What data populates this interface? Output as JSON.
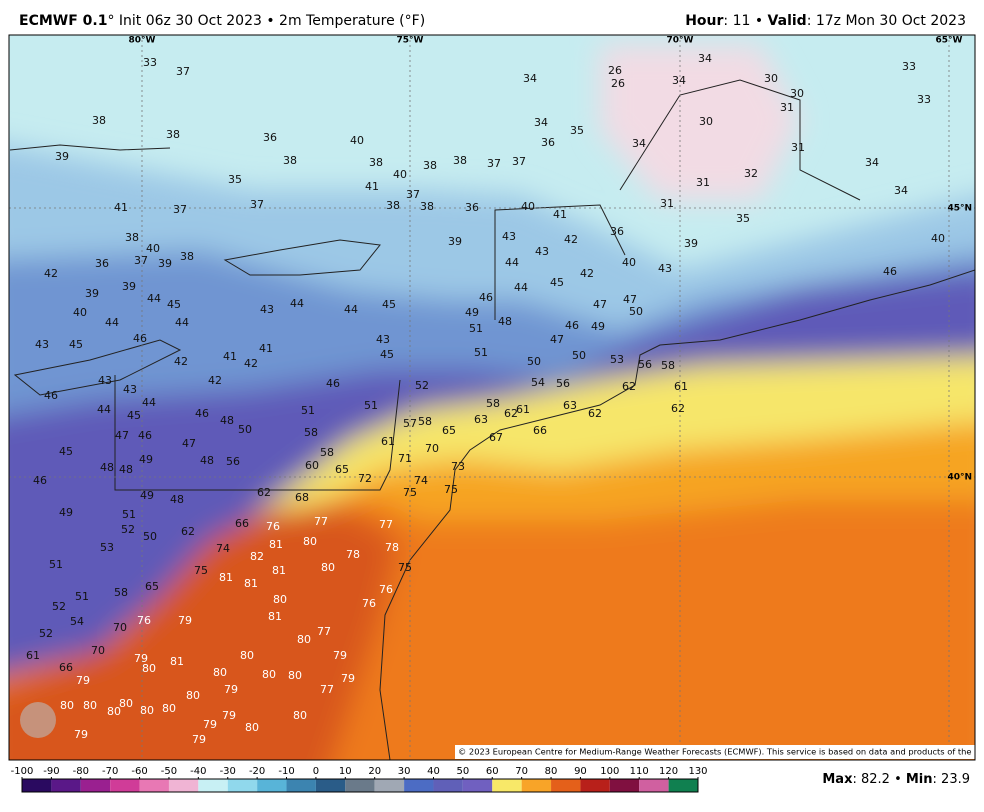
{
  "header": {
    "title_bold": "ECMWF 0.1",
    "title_rest": "° Init 06z 30 Oct 2023 • 2m Temperature (°F)",
    "hour_label": "Hour",
    "hour": ": 11 • ",
    "valid_label": "Valid",
    "valid": ": 17z Mon 30 Oct 2023"
  },
  "map": {
    "lon_labels": [
      "80°W",
      "75°W",
      "70°W",
      "65°W"
    ],
    "lat_labels": [
      "45°N",
      "40°N"
    ],
    "copyright": "© 2023 European Centre for Medium-Range Weather Forecasts (ECMWF). This service is based on data and products of the ECMWF.",
    "temperatures": [
      33,
      37,
      38,
      38,
      36,
      40,
      38,
      38,
      40,
      38,
      38,
      37,
      37,
      36,
      35,
      34,
      34,
      26,
      26,
      34,
      34,
      33,
      33,
      30,
      30,
      31,
      30,
      34,
      31,
      32,
      31,
      34,
      34,
      31,
      35,
      39,
      40,
      46,
      39,
      35,
      37,
      41,
      37,
      38,
      38,
      36,
      40,
      41,
      36,
      39,
      43,
      43,
      42,
      40,
      43,
      44,
      44,
      45,
      42,
      47,
      47,
      50,
      46,
      49,
      51,
      48,
      51,
      47,
      46,
      49,
      50,
      50,
      53,
      56,
      58,
      52,
      54,
      56,
      62,
      61,
      62,
      58,
      61,
      62,
      63,
      62,
      67,
      66,
      63,
      65,
      58,
      57,
      61,
      70,
      71,
      73,
      74,
      75,
      75,
      72,
      65,
      60,
      58,
      58,
      51,
      51,
      46,
      45,
      43,
      44,
      44,
      43,
      45,
      41,
      42,
      41,
      42,
      42,
      46,
      44,
      45,
      44,
      44,
      40,
      39,
      39,
      42,
      36,
      37,
      39,
      38,
      40,
      41,
      37,
      38,
      43,
      45,
      43,
      43,
      46,
      44,
      44,
      45,
      46,
      48,
      50,
      47,
      46,
      47,
      45,
      49,
      48,
      56,
      48,
      48,
      46,
      49,
      68,
      62,
      66,
      76,
      77,
      80,
      81,
      82,
      74,
      78,
      80,
      81,
      75,
      81,
      81,
      80,
      81,
      77,
      78,
      75,
      76,
      76,
      77,
      80,
      79,
      76,
      70,
      65,
      58,
      54,
      52,
      51,
      52,
      51,
      53,
      52,
      50,
      62,
      48,
      49,
      51,
      80,
      79,
      77,
      79,
      81,
      79,
      80,
      70,
      66,
      61,
      79,
      80,
      80,
      80,
      80,
      79,
      80,
      80,
      80,
      80,
      80,
      80,
      79,
      79,
      80,
      80,
      79,
      79
    ]
  },
  "colorbar": {
    "ticks": [
      -100,
      -90,
      -80,
      -70,
      -60,
      -50,
      -40,
      -30,
      -20,
      -10,
      0,
      10,
      20,
      30,
      40,
      50,
      60,
      70,
      80,
      90,
      100,
      110,
      120,
      130
    ],
    "colors": [
      "#2a0a60",
      "#5a1888",
      "#9a2090",
      "#d03c98",
      "#e878b4",
      "#f0b4d4",
      "#c8f0f4",
      "#90d8ec",
      "#58b4d8",
      "#3c84b0",
      "#2a5c88",
      "#6a7a8a",
      "#a0a8b4",
      "#4c6cc4",
      "#6060b8",
      "#7060c0",
      "#f8e868",
      "#f8a428",
      "#e4601a",
      "#b8201a",
      "#801040",
      "#d060a0",
      "#108050"
    ]
  },
  "footer": {
    "max_label": "Max",
    "max": ": 82.2 • ",
    "min_label": "Min",
    "min": ": 23.9"
  }
}
